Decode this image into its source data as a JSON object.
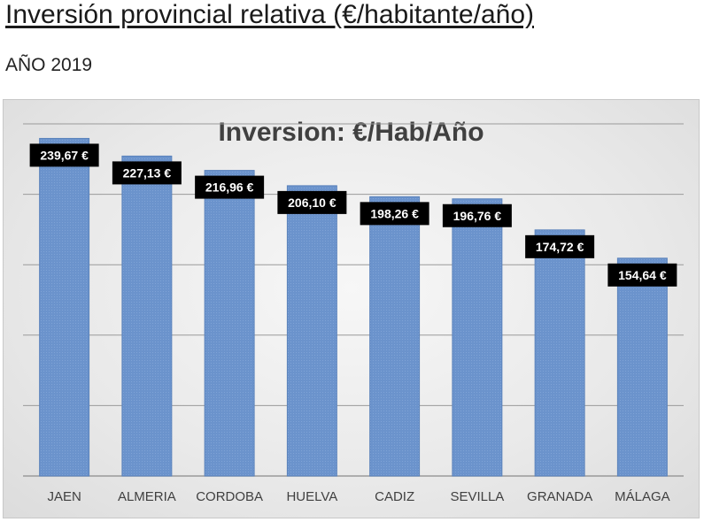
{
  "page": {
    "heading": "Inversión provincial relativa (€/habitante/año)",
    "subheading": "AÑO 2019"
  },
  "colors": {
    "bar": "#6b93cc",
    "bar_stroke": "#5a82bb",
    "label_bg": "#000000",
    "label_text": "#ffffff",
    "gridline": "#9a9a9a",
    "category_text": "#404040"
  },
  "chart_data": {
    "type": "bar",
    "title": "Inversion: €/Hab/Año",
    "xlabel": "",
    "ylabel": "",
    "categories": [
      "JAEN",
      "ALMERIA",
      "CORDOBA",
      "HUELVA",
      "CADIZ",
      "SEVILLA",
      "GRANADA",
      "MÁLAGA"
    ],
    "values": [
      239.67,
      227.13,
      216.96,
      206.1,
      198.26,
      196.76,
      174.72,
      154.64
    ],
    "value_labels": [
      "239,67 €",
      "227,13 €",
      "216,96 €",
      "206,10 €",
      "198,26 €",
      "196,76 €",
      "174,72 €",
      "154,64 €"
    ],
    "ylim": [
      0,
      250
    ],
    "ytick_step": 50,
    "y_tick_labels_shown": false,
    "grid": true,
    "legend": "none"
  }
}
